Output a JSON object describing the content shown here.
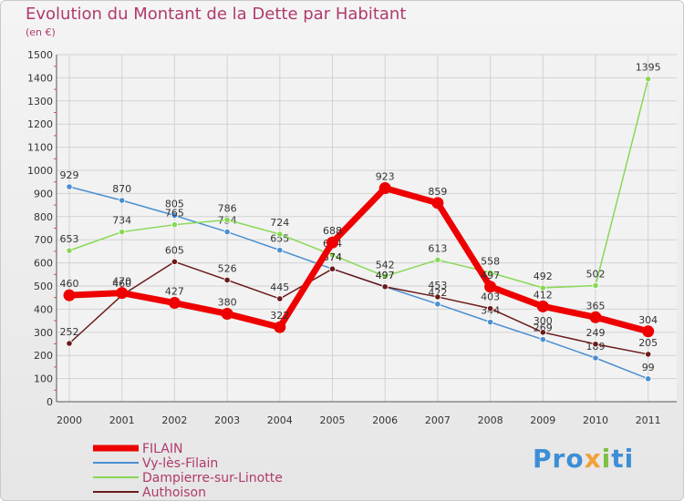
{
  "chart_data": {
    "type": "line",
    "title": "Evolution du Montant de la Dette par Habitant",
    "subtitle": "(en €)",
    "x": [
      "2000",
      "2001",
      "2002",
      "2003",
      "2004",
      "2005",
      "2006",
      "2007",
      "2008",
      "2009",
      "2010",
      "2011"
    ],
    "ylim": [
      0,
      1500
    ],
    "yticks": [
      0,
      100,
      200,
      300,
      400,
      500,
      600,
      700,
      800,
      900,
      1000,
      1100,
      1200,
      1300,
      1400,
      1500
    ],
    "grid": true,
    "legend_position": "bottom-left",
    "series": [
      {
        "name": "FILAIN",
        "color": "#ee0000",
        "values": [
          460,
          470,
          427,
          380,
          322,
          688,
          923,
          859,
          497,
          412,
          365,
          304
        ]
      },
      {
        "name": "Vy-lès-Filain",
        "color": "#4a8fd0",
        "values": [
          929,
          870,
          805,
          734,
          655,
          574,
          497,
          422,
          344,
          269,
          189,
          99
        ]
      },
      {
        "name": "Dampierre-sur-Linotte",
        "color": "#88d855",
        "values": [
          653,
          734,
          765,
          786,
          724,
          634,
          542,
          613,
          558,
          492,
          502,
          1395
        ]
      },
      {
        "name": "Authoison",
        "color": "#6b1a1a",
        "values": [
          252,
          460,
          605,
          526,
          445,
          574,
          497,
          453,
          403,
          300,
          249,
          205
        ]
      }
    ]
  },
  "logo": {
    "p1": "Pro",
    "p2": "x",
    "p3": "i",
    "p4": "ti"
  }
}
